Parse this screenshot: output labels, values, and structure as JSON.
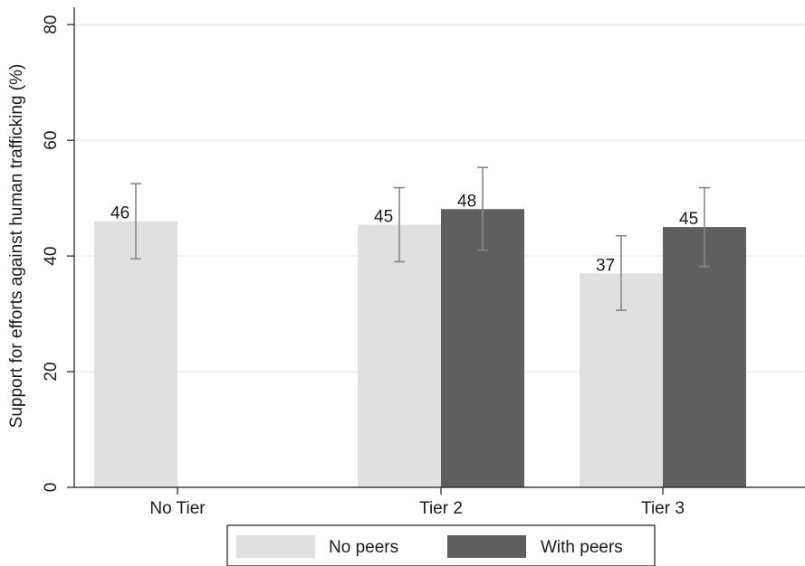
{
  "chart_data": {
    "type": "bar",
    "title": "",
    "xlabel": "",
    "ylabel": "Support for efforts against human trafficking (%)",
    "ylim": [
      0,
      83
    ],
    "yticks": [
      0,
      20,
      40,
      60,
      80
    ],
    "ytick_labels": [
      "0",
      "20",
      "40",
      "60",
      "80"
    ],
    "grid": true,
    "legend_position": "bottom",
    "categories": [
      "No Tier",
      "Tier 2",
      "Tier 3"
    ],
    "series": [
      {
        "name": "No peers",
        "color": "#e0e0e0",
        "values": [
          46,
          45.4,
          37
        ],
        "error_low": [
          39.5,
          39,
          30.6
        ],
        "error_high": [
          52.5,
          51.8,
          43.5
        ],
        "labels": [
          "46",
          "45",
          "37"
        ]
      },
      {
        "name": "With peers",
        "color": "#5f5f5f",
        "values": [
          null,
          48.1,
          45
        ],
        "error_low": [
          null,
          41,
          38.2
        ],
        "error_high": [
          null,
          55.3,
          51.8
        ],
        "labels": [
          "",
          "48",
          "45"
        ]
      }
    ],
    "error_bar_color": "#888888",
    "grid_color": "#e4ede9"
  }
}
